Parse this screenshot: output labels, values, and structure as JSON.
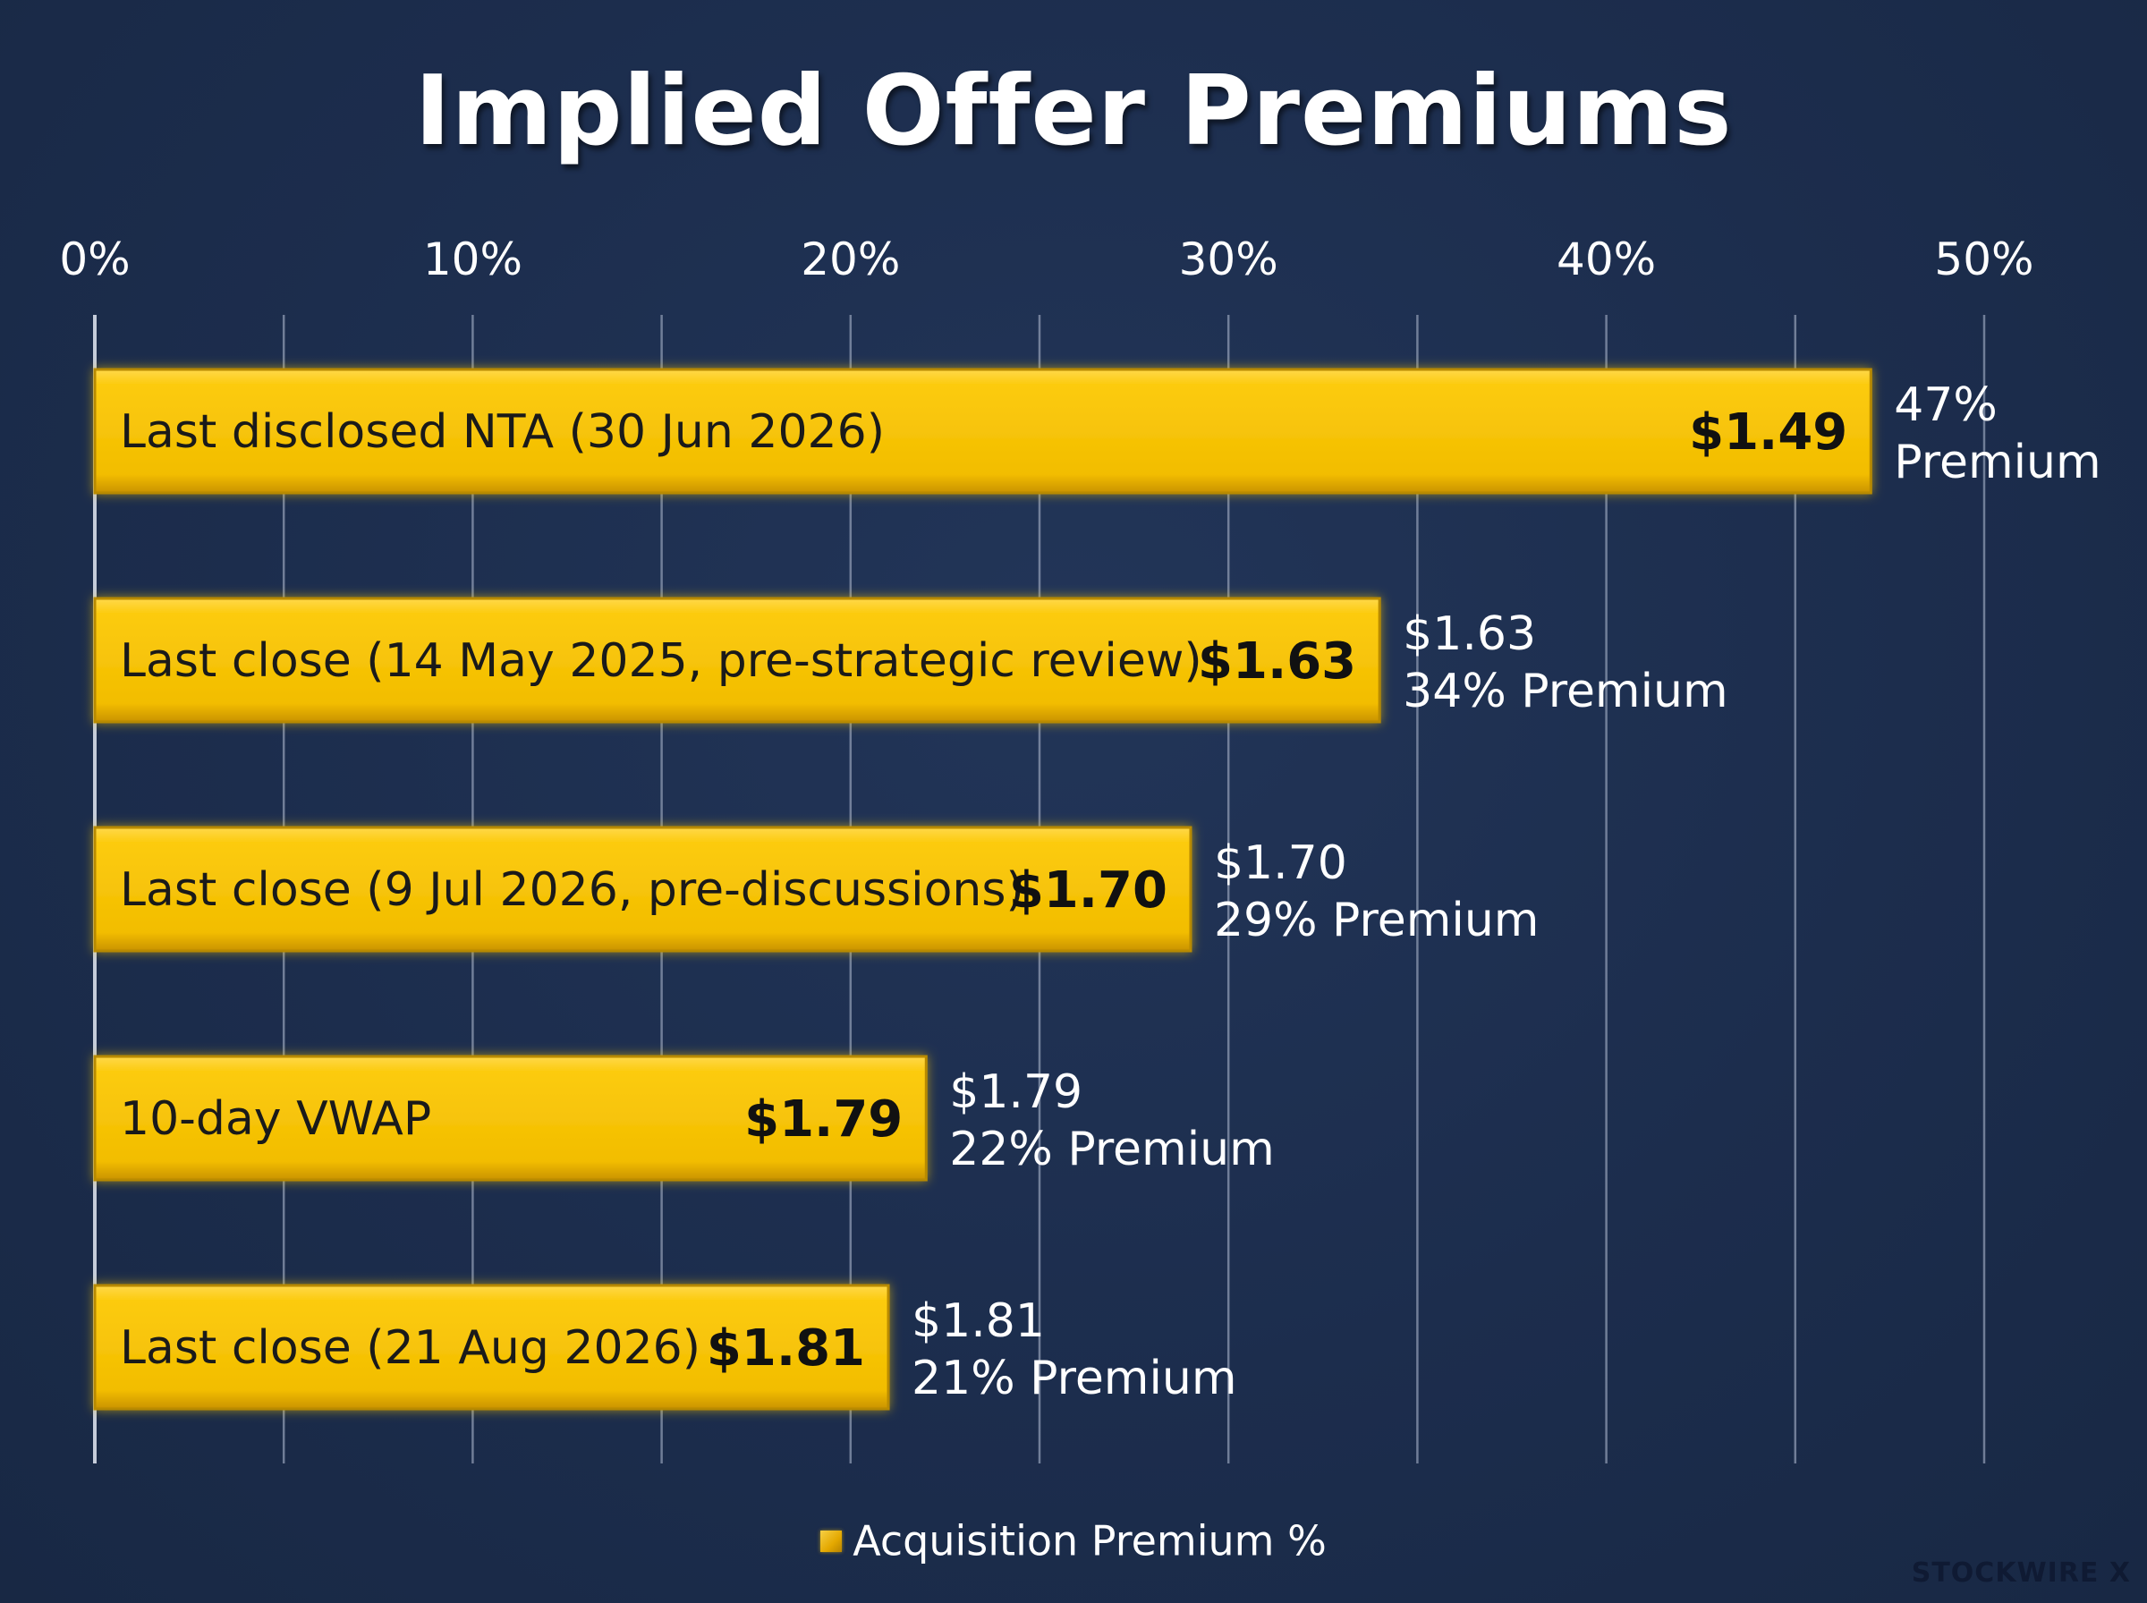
{
  "chart_data": {
    "type": "bar",
    "orientation": "horizontal",
    "title": "Implied Offer Premiums",
    "xlim": [
      0,
      50
    ],
    "x_ticks": [
      0,
      10,
      20,
      30,
      40,
      50
    ],
    "x_tick_labels": [
      "0%",
      "10%",
      "20%",
      "30%",
      "40%",
      "50%"
    ],
    "grid": true,
    "legend": {
      "position": "bottom",
      "entries": [
        "Acquisition Premium %"
      ]
    },
    "categories": [
      "Last disclosed NTA (30 Jun 2026)",
      "Last close (14 May 2025, pre-strategic review)",
      "Last close (9 Jul 2026, pre-discussions)",
      "10-day VWAP",
      "Last close (21 Aug 2026)"
    ],
    "series": [
      {
        "name": "Acquisition Premium %",
        "values": [
          47,
          34,
          29,
          22,
          21
        ],
        "color": "#f5c400"
      }
    ],
    "reference_prices": [
      "$1.49",
      "$1.63",
      "$1.70",
      "$1.79",
      "$1.81"
    ],
    "annotations": [
      {
        "line1": "47%",
        "line2": "Premium"
      },
      {
        "line1": "$1.63",
        "line2": "34% Premium"
      },
      {
        "line1": "$1.70",
        "line2": "29% Premium"
      },
      {
        "line1": "$1.79",
        "line2": "22% Premium"
      },
      {
        "line1": "$1.81",
        "line2": "21% Premium"
      }
    ]
  },
  "watermark": "STOCKWIRE X",
  "colors": {
    "background": "#1c2d4d",
    "bar_fill": "#f5c400",
    "bar_edge": "#b88a00",
    "grid": "#8e9ab2"
  }
}
